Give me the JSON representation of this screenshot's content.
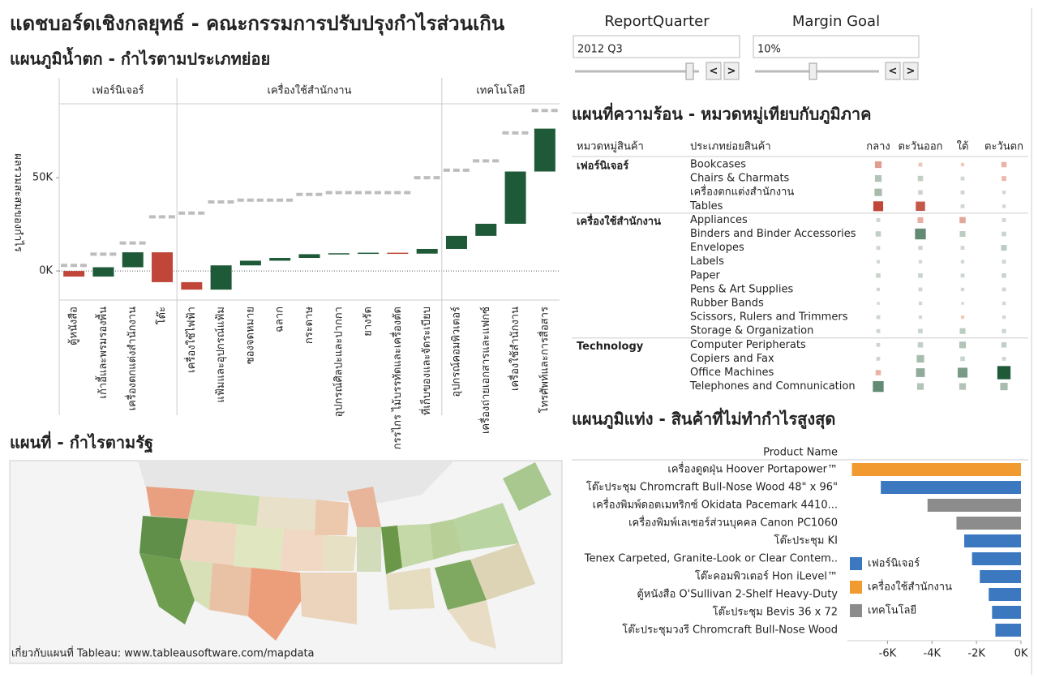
{
  "header": {
    "title": "แดชบอร์ดเชิงกลยุทธ์ - คณะกรรมการปรับปรุงกำไรส่วนเกิน"
  },
  "controls": [
    {
      "label": "ReportQuarter",
      "value": "2012 Q3"
    },
    {
      "label": "Margin Goal",
      "value": "10%"
    }
  ],
  "map": {
    "title": "แผนที่ - กำไรตามรัฐ",
    "footnote": "เกี่ยวกับแผนที่ Tableau: www.tableausoftware.com/mapdata"
  },
  "chart_data": [
    {
      "type": "waterfall",
      "title": "แผนภูมิน้ำตก - กำไรตามประเภทย่อย",
      "ylabel": "ผลรวมสะสมของกำไร",
      "ylim": [
        -15600,
        89600
      ],
      "yticks": [
        {
          "value": 0,
          "label": "0K"
        },
        {
          "value": 50000,
          "label": "50K"
        }
      ],
      "positive_color": "#1e5a38",
      "negative_color": "#c0463a",
      "reference_color": "#bdbdbd",
      "groups": [
        {
          "name": "เฟอร์นิเจอร์",
          "categories": [
            "ตู้หนังสือ",
            "เก้าอี้และพรมรองพื้น",
            "เครื่องตกแต่งสำนักงาน",
            "โต๊ะ"
          ],
          "values": [
            -3000,
            5000,
            8000,
            -16000
          ],
          "reference": [
            3000,
            9000,
            15000,
            29000
          ]
        },
        {
          "name": "เครื่องใช้สำนักงาน",
          "categories": [
            "เครื่องใช้ไฟฟ้า",
            "แฟ้มและอุปกรณ์แฟ้ม",
            "ซองจดหมาย",
            "ฉลาก",
            "กระดาษ",
            "อุปกรณ์ศิลปะและปากกา",
            "ยางรัด",
            "กรรไกร ไม้บรรทัดและเครื่องตัด",
            "ที่เก็บของและจัดระเบียบ"
          ],
          "values": [
            -4000,
            13000,
            2500,
            1500,
            2000,
            500,
            300,
            -500,
            2500
          ],
          "reference": [
            31000,
            37000,
            38000,
            38000,
            41000,
            42000,
            42000,
            42000,
            50000
          ]
        },
        {
          "name": "เทคโนโลยี",
          "categories": [
            "อุปกรณ์คอมพิวเตอร์",
            "เครื่องถ่ายเอกสารและแฟกซ์",
            "เครื่องใช้สำนักงาน",
            "โทรศัพท์และการสื่อสาร"
          ],
          "values": [
            7000,
            6500,
            28000,
            23000
          ],
          "reference": [
            54000,
            59000,
            74000,
            86000
          ]
        }
      ]
    },
    {
      "type": "heatmap",
      "title": "แผนที่ความร้อน - หมวดหมู่เทียบกับภูมิภาค",
      "row_headers": [
        "หมวดหมู่สินค้า",
        "ประเภทย่อยสินค้า"
      ],
      "regions": [
        "กลาง",
        "ตะวันออก",
        "ใต้",
        "ตะวันตก"
      ],
      "positive_color": "#1e5a38",
      "negative_color": "#c0463a",
      "groups": [
        {
          "name": "เฟอร์นิเจอร์",
          "rows": [
            {
              "name": "Bookcases",
              "values": [
                -1500,
                -300,
                -200,
                -800
              ]
            },
            {
              "name": "Chairs & Charmats",
              "values": [
                1500,
                800,
                300,
                -600
              ]
            },
            {
              "name": "เครื่องตกแต่งสำนักงาน",
              "values": [
                2000,
                500,
                300,
                200
              ]
            },
            {
              "name": "Tables",
              "values": [
                -4000,
                -3500,
                300,
                200
              ]
            }
          ]
        },
        {
          "name": "เครื่องใช้สำนักงาน",
          "rows": [
            {
              "name": "Appliances",
              "values": [
                300,
                -1000,
                -1200,
                300
              ]
            },
            {
              "name": "Binders and Binder Accessories",
              "values": [
                800,
                5000,
                1000,
                500
              ]
            },
            {
              "name": "Envelopes",
              "values": [
                300,
                400,
                300,
                1000
              ]
            },
            {
              "name": "Labels",
              "values": [
                200,
                200,
                200,
                300
              ]
            },
            {
              "name": "Paper",
              "values": [
                500,
                500,
                300,
                500
              ]
            },
            {
              "name": "Pens & Art Supplies",
              "values": [
                200,
                300,
                200,
                300
              ]
            },
            {
              "name": "Rubber Bands",
              "values": [
                100,
                200,
                100,
                200
              ]
            },
            {
              "name": "Scissors, Rulers and Trimmers",
              "values": [
                300,
                200,
                -200,
                200
              ]
            },
            {
              "name": "Storage & Organization",
              "values": [
                300,
                500,
                1000,
                400
              ]
            }
          ]
        },
        {
          "name": "Technology",
          "rows": [
            {
              "name": "Computer Peripherats",
              "values": [
                300,
                800,
                1500,
                800
              ]
            },
            {
              "name": "Copiers and Fax",
              "values": [
                300,
                2000,
                500,
                300
              ]
            },
            {
              "name": "Office Machines",
              "values": [
                -800,
                3000,
                4000,
                8000
              ]
            },
            {
              "name": "Telephones and Comnunication",
              "values": [
                5000,
                1500,
                1500,
                2000
              ]
            }
          ]
        }
      ]
    },
    {
      "type": "hbar",
      "title": "แผนภูมิแท่ง - สินค้าที่ไม่ทำกำไรสูงสุด",
      "ylabel": "Product Name",
      "categories": [
        "เครื่องดูดฝุ่น Hoover Portapower™",
        "โต๊ะประชุม Chromcraft Bull-Nose Wood 48\" x 96\"",
        "เครื่องพิมพ์ดอตเมทริกซ์ Okidata Pacemark 4410...",
        "เครื่องพิมพ์เลเซอร์ส่วนบุคคล Canon PC1060",
        "โต๊ะประชุม KI",
        "Tenex Carpeted, Granite-Look or Clear Contem..",
        "โต๊ะคอมพิวเตอร์ Hon iLevel™",
        "ตู้หนังสือ O'Sullivan 2-Shelf Heavy-Duty",
        "โต๊ะประชุม Bevis 36 x 72",
        "โต๊ะประชุมวงรี Chromcraft Bull-Nose Wood"
      ],
      "series": [
        {
          "name": "เฟอร์นิเจอร์",
          "color": "#3b78c0",
          "values": [
            null,
            -6300,
            null,
            null,
            -2550,
            -2200,
            -1850,
            -1450,
            -1300,
            -1150
          ]
        },
        {
          "name": "เครื่องใช้สำนักงาน",
          "color": "#f09a30",
          "values": [
            -7600,
            null,
            null,
            null,
            null,
            null,
            null,
            null,
            null,
            null
          ]
        },
        {
          "name": "เทคโนโลยี",
          "color": "#8c8c8c",
          "values": [
            null,
            null,
            -4200,
            -2900,
            null,
            null,
            null,
            null,
            null,
            null
          ]
        }
      ],
      "xlim": [
        -7800,
        0
      ],
      "xticks": [
        {
          "value": -6000,
          "label": "-6K"
        },
        {
          "value": -4000,
          "label": "-4K"
        },
        {
          "value": -2000,
          "label": "-2K"
        },
        {
          "value": 0,
          "label": "0K"
        }
      ]
    }
  ]
}
